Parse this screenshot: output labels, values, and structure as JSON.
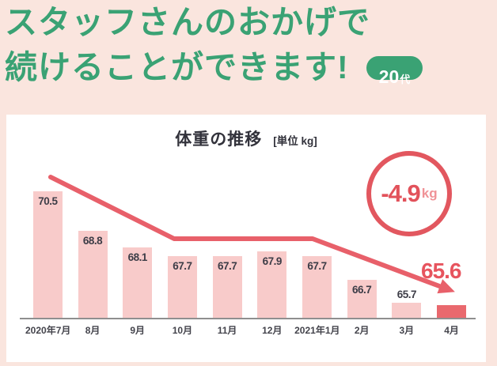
{
  "page": {
    "background_color": "#FAE5DE",
    "accent_green": "#3AA274",
    "accent_red": "#E8606A"
  },
  "headline": {
    "line1": "スタッフさんのおかげで",
    "line2": "続けることができます!",
    "text_color": "#3AA274",
    "age_badge": {
      "number": "20",
      "suffix": "代"
    }
  },
  "chart": {
    "title": "体重の推移",
    "unit_label": "[単位 kg]",
    "loss_badge": {
      "value": "-4.9",
      "unit": "kg"
    },
    "final_value_label": "65.6"
  },
  "chart_data": {
    "type": "bar",
    "title": "体重の推移",
    "ylabel": "体重",
    "unit": "kg",
    "categories": [
      "2020年7月",
      "8月",
      "9月",
      "10月",
      "11月",
      "12月",
      "2021年1月",
      "2月",
      "3月",
      "4月"
    ],
    "values": [
      70.5,
      68.8,
      68.1,
      67.7,
      67.7,
      67.9,
      67.7,
      66.7,
      65.7,
      65.6
    ],
    "label_positions": [
      "inside",
      "inside",
      "inside",
      "inside",
      "inside",
      "inside",
      "inside",
      "inside",
      "above",
      "none"
    ],
    "highlight_index": 9,
    "baseline_value": 65.0,
    "total_change_kg": -4.9,
    "grid": false,
    "legend_position": "none",
    "annotations": {
      "loss_circle": "-4.9kg",
      "final_value": "65.6",
      "trend": "downward arrow"
    },
    "colors": {
      "bar": "#F8CBCA",
      "bar_highlight": "#E9696E",
      "trend_line": "#E8606A",
      "value_text": "#3D3D47",
      "axis_line": "#8F8F8F"
    }
  }
}
